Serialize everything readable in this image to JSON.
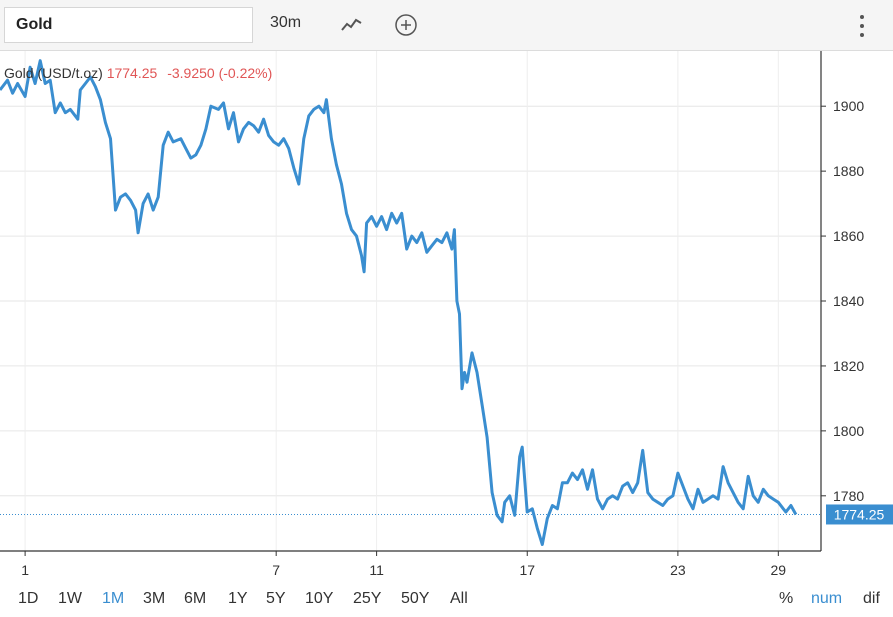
{
  "toolbar": {
    "symbol": "Gold",
    "interval": "30m",
    "chart_type_icon": "line-chart-icon",
    "compare_icon": "plus-circle-icon",
    "menu_icon": "vertical-dots-icon"
  },
  "legend": {
    "name": "Gold (USD/t.oz)",
    "price": "1774.25",
    "change": "-3.9250 (-0.22%)"
  },
  "ranges": [
    "1D",
    "1W",
    "1M",
    "3M",
    "6M",
    "1Y",
    "5Y",
    "10Y",
    "25Y",
    "50Y",
    "All"
  ],
  "active_range": "1M",
  "modes": [
    "%",
    "num",
    "dif"
  ],
  "active_mode": "num",
  "colors": {
    "line": "#3a8ed0",
    "negative": "#e05555",
    "last_price_bg": "#3a8ed0"
  },
  "chart_data": {
    "type": "line",
    "title": "Gold (USD/t.oz)",
    "xlabel": "",
    "ylabel": "",
    "x_ticks": [
      "1",
      "7",
      "11",
      "17",
      "23",
      "29"
    ],
    "y_ticks": [
      1780,
      1800,
      1820,
      1840,
      1860,
      1880,
      1900
    ],
    "ylim": [
      1763,
      1917
    ],
    "grid": true,
    "last_price": "1774.25",
    "series": [
      {
        "name": "Gold (USD/t.oz)",
        "points": [
          [
            0.0,
            1905
          ],
          [
            0.3,
            1908
          ],
          [
            0.5,
            1904
          ],
          [
            0.7,
            1907
          ],
          [
            1.0,
            1903
          ],
          [
            1.2,
            1912
          ],
          [
            1.4,
            1907
          ],
          [
            1.6,
            1914
          ],
          [
            1.8,
            1907
          ],
          [
            2.0,
            1908
          ],
          [
            2.2,
            1898
          ],
          [
            2.4,
            1901
          ],
          [
            2.6,
            1898
          ],
          [
            2.8,
            1899
          ],
          [
            3.0,
            1897
          ],
          [
            3.1,
            1896
          ],
          [
            3.2,
            1905
          ],
          [
            3.4,
            1907
          ],
          [
            3.6,
            1909
          ],
          [
            3.8,
            1906
          ],
          [
            4.0,
            1902
          ],
          [
            4.2,
            1895
          ],
          [
            4.4,
            1890
          ],
          [
            4.6,
            1868
          ],
          [
            4.8,
            1872
          ],
          [
            5.0,
            1873
          ],
          [
            5.2,
            1871
          ],
          [
            5.4,
            1868
          ],
          [
            5.5,
            1861
          ],
          [
            5.7,
            1870
          ],
          [
            5.9,
            1873
          ],
          [
            6.1,
            1868
          ],
          [
            6.3,
            1872
          ],
          [
            6.5,
            1888
          ],
          [
            6.7,
            1892
          ],
          [
            6.9,
            1889
          ],
          [
            7.2,
            1890
          ],
          [
            7.4,
            1887
          ],
          [
            7.6,
            1884
          ],
          [
            7.8,
            1885
          ],
          [
            8.0,
            1888
          ],
          [
            8.2,
            1893
          ],
          [
            8.4,
            1900
          ],
          [
            8.7,
            1899
          ],
          [
            8.9,
            1901
          ],
          [
            9.1,
            1893
          ],
          [
            9.3,
            1898
          ],
          [
            9.5,
            1889
          ],
          [
            9.7,
            1893
          ],
          [
            9.9,
            1895
          ],
          [
            10.1,
            1894
          ],
          [
            10.3,
            1892
          ],
          [
            10.5,
            1896
          ],
          [
            10.7,
            1891
          ],
          [
            10.9,
            1889
          ],
          [
            11.1,
            1888
          ],
          [
            11.3,
            1890
          ],
          [
            11.5,
            1887
          ],
          [
            11.7,
            1881
          ],
          [
            11.9,
            1876
          ],
          [
            12.1,
            1890
          ],
          [
            12.3,
            1897
          ],
          [
            12.5,
            1899
          ],
          [
            12.7,
            1900
          ],
          [
            12.9,
            1898
          ],
          [
            13.0,
            1902
          ],
          [
            13.2,
            1890
          ],
          [
            13.4,
            1882
          ],
          [
            13.6,
            1876
          ],
          [
            13.8,
            1867
          ],
          [
            14.0,
            1862
          ],
          [
            14.2,
            1860
          ],
          [
            14.4,
            1854
          ],
          [
            14.5,
            1849
          ],
          [
            14.6,
            1864
          ],
          [
            14.8,
            1866
          ],
          [
            15.0,
            1863
          ],
          [
            15.2,
            1866
          ],
          [
            15.4,
            1862
          ],
          [
            15.6,
            1867
          ],
          [
            15.8,
            1864
          ],
          [
            16.0,
            1867
          ],
          [
            16.2,
            1856
          ],
          [
            16.4,
            1860
          ],
          [
            16.6,
            1858
          ],
          [
            16.8,
            1861
          ],
          [
            17.0,
            1855
          ],
          [
            17.2,
            1857
          ],
          [
            17.4,
            1859
          ],
          [
            17.6,
            1858
          ],
          [
            17.8,
            1861
          ],
          [
            18.0,
            1856
          ],
          [
            18.1,
            1862
          ],
          [
            18.2,
            1840
          ],
          [
            18.3,
            1836
          ],
          [
            18.4,
            1813
          ],
          [
            18.5,
            1818
          ],
          [
            18.6,
            1815
          ],
          [
            18.8,
            1824
          ],
          [
            19.0,
            1818
          ],
          [
            19.2,
            1808
          ],
          [
            19.4,
            1798
          ],
          [
            19.6,
            1781
          ],
          [
            19.8,
            1774
          ],
          [
            20.0,
            1772
          ],
          [
            20.1,
            1778
          ],
          [
            20.3,
            1780
          ],
          [
            20.5,
            1774
          ],
          [
            20.7,
            1792
          ],
          [
            20.8,
            1795
          ],
          [
            21.0,
            1775
          ],
          [
            21.2,
            1776
          ],
          [
            21.4,
            1770
          ],
          [
            21.6,
            1765
          ],
          [
            21.8,
            1773
          ],
          [
            22.0,
            1777
          ],
          [
            22.2,
            1776
          ],
          [
            22.4,
            1784
          ],
          [
            22.6,
            1784
          ],
          [
            22.8,
            1787
          ],
          [
            23.0,
            1785
          ],
          [
            23.2,
            1788
          ],
          [
            23.4,
            1782
          ],
          [
            23.6,
            1788
          ],
          [
            23.8,
            1779
          ],
          [
            24.0,
            1776
          ],
          [
            24.2,
            1779
          ],
          [
            24.4,
            1780
          ],
          [
            24.6,
            1779
          ],
          [
            24.8,
            1783
          ],
          [
            25.0,
            1784
          ],
          [
            25.2,
            1781
          ],
          [
            25.4,
            1784
          ],
          [
            25.6,
            1794
          ],
          [
            25.8,
            1781
          ],
          [
            26.0,
            1779
          ],
          [
            26.2,
            1778
          ],
          [
            26.4,
            1777
          ],
          [
            26.6,
            1779
          ],
          [
            26.8,
            1780
          ],
          [
            27.0,
            1787
          ],
          [
            27.2,
            1783
          ],
          [
            27.4,
            1779
          ],
          [
            27.6,
            1776
          ],
          [
            27.8,
            1782
          ],
          [
            28.0,
            1778
          ],
          [
            28.2,
            1779
          ],
          [
            28.4,
            1780
          ],
          [
            28.6,
            1779
          ],
          [
            28.8,
            1789
          ],
          [
            29.0,
            1784
          ],
          [
            29.2,
            1781
          ],
          [
            29.4,
            1778
          ],
          [
            29.6,
            1776
          ],
          [
            29.8,
            1786
          ],
          [
            30.0,
            1780
          ],
          [
            30.2,
            1778
          ],
          [
            30.4,
            1782
          ],
          [
            30.6,
            1780
          ],
          [
            30.8,
            1779
          ],
          [
            31.0,
            1778
          ],
          [
            31.2,
            1776
          ],
          [
            31.3,
            1775
          ],
          [
            31.5,
            1777
          ],
          [
            31.7,
            1774.25
          ]
        ]
      }
    ]
  }
}
